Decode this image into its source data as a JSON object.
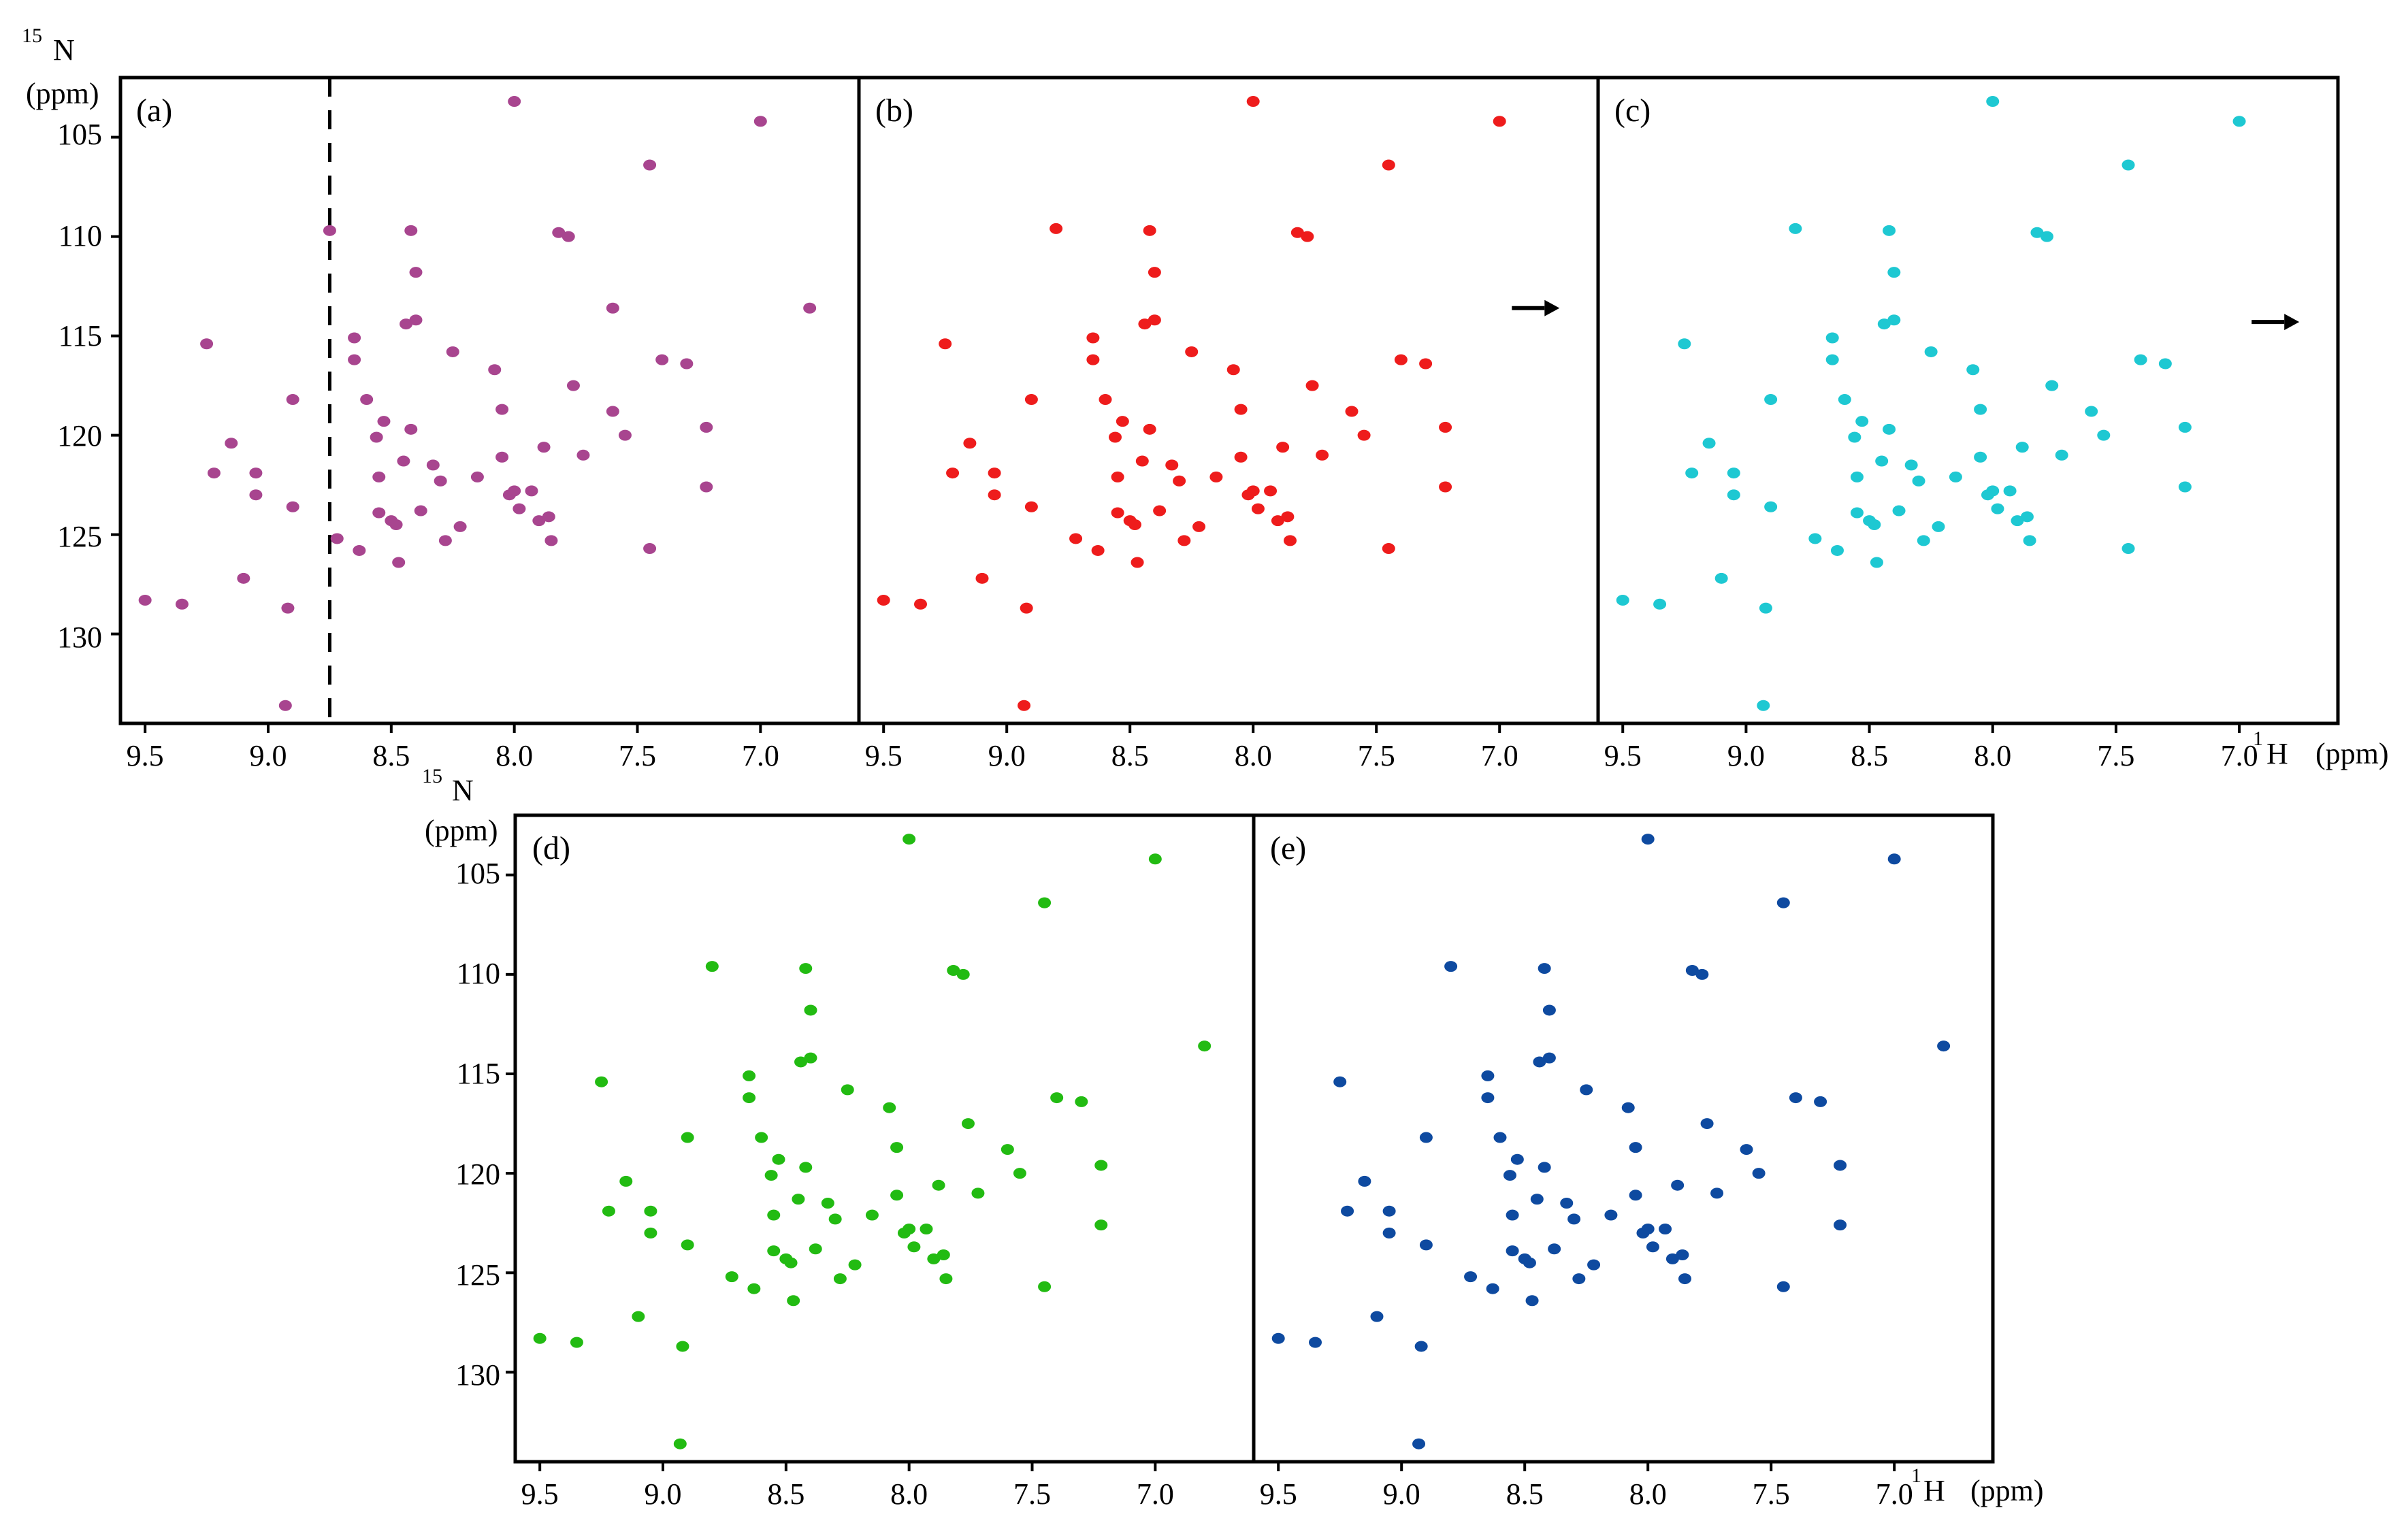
{
  "figure": {
    "rows": [
      {
        "n_title": {
          "sup": "15",
          "main": "N",
          "unit": "(ppm)"
        },
        "h_title": {
          "sup": "1",
          "main": "H",
          "unit": "(ppm)"
        },
        "y_ticks": [
          "105",
          "110",
          "115",
          "120",
          "125",
          "130"
        ],
        "x_ticks": [
          "9.5",
          "9.0",
          "8.5",
          "8.0",
          "7.5",
          "7.0"
        ]
      },
      {
        "n_title": {
          "sup": "15",
          "main": "N",
          "unit": "(ppm)"
        },
        "h_title": {
          "sup": "1",
          "main": "H",
          "unit": "(ppm)"
        },
        "y_ticks": [
          "105",
          "110",
          "115",
          "120",
          "125",
          "130"
        ],
        "x_ticks": [
          "9.5",
          "9.0",
          "8.5",
          "8.0",
          "7.5",
          "7.0"
        ]
      }
    ]
  },
  "chart_data": [
    {
      "panel": "(a)",
      "type": "scatter",
      "color": "#a8458f",
      "xlim": [
        9.6,
        6.6
      ],
      "ylim": [
        102,
        134.5
      ],
      "x_reversed": true,
      "y_reversed": true,
      "reference_line": {
        "x": 8.75,
        "style": "dashed"
      },
      "points": [
        [
          9.5,
          128.3
        ],
        [
          9.35,
          128.5
        ],
        [
          9.25,
          115.4
        ],
        [
          9.22,
          121.9
        ],
        [
          9.15,
          120.4
        ],
        [
          9.1,
          127.2
        ],
        [
          9.05,
          121.9
        ],
        [
          9.05,
          123
        ],
        [
          8.93,
          133.6
        ],
        [
          8.92,
          128.7
        ],
        [
          8.9,
          118.2
        ],
        [
          8.9,
          123.6
        ],
        [
          8.75,
          109.7
        ],
        [
          8.72,
          125.2
        ],
        [
          8.65,
          115.1
        ],
        [
          8.65,
          116.2
        ],
        [
          8.63,
          125.8
        ],
        [
          8.6,
          118.2
        ],
        [
          8.56,
          120.1
        ],
        [
          8.55,
          122.1
        ],
        [
          8.55,
          123.9
        ],
        [
          8.53,
          119.3
        ],
        [
          8.5,
          124.3
        ],
        [
          8.48,
          124.5
        ],
        [
          8.47,
          126.4
        ],
        [
          8.45,
          121.3
        ],
        [
          8.44,
          114.4
        ],
        [
          8.42,
          109.7
        ],
        [
          8.42,
          119.7
        ],
        [
          8.4,
          111.8
        ],
        [
          8.4,
          114.2
        ],
        [
          8.38,
          123.8
        ],
        [
          8.33,
          121.5
        ],
        [
          8.3,
          122.3
        ],
        [
          8.28,
          125.3
        ],
        [
          8.25,
          115.8
        ],
        [
          8.22,
          124.6
        ],
        [
          8.15,
          122.1
        ],
        [
          8.08,
          116.7
        ],
        [
          8.05,
          118.7
        ],
        [
          8.05,
          121.1
        ],
        [
          8.02,
          123
        ],
        [
          8.0,
          122.8
        ],
        [
          7.98,
          123.7
        ],
        [
          7.93,
          122.8
        ],
        [
          7.9,
          124.3
        ],
        [
          7.88,
          120.6
        ],
        [
          7.86,
          124.1
        ],
        [
          7.85,
          125.3
        ],
        [
          7.82,
          109.8
        ],
        [
          7.78,
          110
        ],
        [
          7.76,
          117.5
        ],
        [
          7.72,
          121
        ],
        [
          7.45,
          125.7
        ],
        [
          7.6,
          118.8
        ],
        [
          7.55,
          120
        ],
        [
          7.4,
          116.2
        ],
        [
          7.3,
          116.4
        ],
        [
          7.22,
          119.6
        ],
        [
          7.22,
          122.6
        ],
        [
          8.0,
          103.2
        ],
        [
          7.0,
          104.2
        ],
        [
          7.45,
          106.4
        ],
        [
          7.6,
          113.6
        ],
        [
          6.8,
          113.6
        ]
      ]
    },
    {
      "panel": "(b)",
      "type": "scatter",
      "color": "#ee1c1c",
      "xlim": [
        9.6,
        6.6
      ],
      "ylim": [
        102,
        134.5
      ],
      "x_reversed": true,
      "y_reversed": true,
      "annotation": {
        "type": "arrow",
        "x": 6.95,
        "y": 113.6,
        "direction": "right"
      },
      "points": [
        [
          9.5,
          128.3
        ],
        [
          9.35,
          128.5
        ],
        [
          9.25,
          115.4
        ],
        [
          9.22,
          121.9
        ],
        [
          9.15,
          120.4
        ],
        [
          9.1,
          127.2
        ],
        [
          9.05,
          121.9
        ],
        [
          9.05,
          123
        ],
        [
          8.93,
          133.6
        ],
        [
          8.92,
          128.7
        ],
        [
          8.9,
          118.2
        ],
        [
          8.9,
          123.6
        ],
        [
          8.72,
          125.2
        ],
        [
          8.65,
          115.1
        ],
        [
          8.65,
          116.2
        ],
        [
          8.63,
          125.8
        ],
        [
          8.6,
          118.2
        ],
        [
          8.56,
          120.1
        ],
        [
          8.55,
          122.1
        ],
        [
          8.55,
          123.9
        ],
        [
          8.53,
          119.3
        ],
        [
          8.5,
          124.3
        ],
        [
          8.48,
          124.5
        ],
        [
          8.47,
          126.4
        ],
        [
          8.45,
          121.3
        ],
        [
          8.44,
          114.4
        ],
        [
          8.42,
          109.7
        ],
        [
          8.42,
          119.7
        ],
        [
          8.4,
          111.8
        ],
        [
          8.4,
          114.2
        ],
        [
          8.38,
          123.8
        ],
        [
          8.33,
          121.5
        ],
        [
          8.3,
          122.3
        ],
        [
          8.28,
          125.3
        ],
        [
          8.25,
          115.8
        ],
        [
          8.22,
          124.6
        ],
        [
          8.15,
          122.1
        ],
        [
          8.08,
          116.7
        ],
        [
          8.05,
          118.7
        ],
        [
          8.05,
          121.1
        ],
        [
          8.02,
          123
        ],
        [
          8.0,
          122.8
        ],
        [
          7.98,
          123.7
        ],
        [
          7.93,
          122.8
        ],
        [
          7.9,
          124.3
        ],
        [
          7.88,
          120.6
        ],
        [
          7.86,
          124.1
        ],
        [
          7.85,
          125.3
        ],
        [
          7.82,
          109.8
        ],
        [
          7.78,
          110
        ],
        [
          7.76,
          117.5
        ],
        [
          7.72,
          121
        ],
        [
          7.45,
          125.7
        ],
        [
          7.6,
          118.8
        ],
        [
          7.55,
          120
        ],
        [
          7.4,
          116.2
        ],
        [
          7.3,
          116.4
        ],
        [
          7.22,
          119.6
        ],
        [
          7.22,
          122.6
        ],
        [
          8.0,
          103.2
        ],
        [
          7.0,
          104.2
        ],
        [
          7.45,
          106.4
        ],
        [
          8.8,
          109.6
        ]
      ]
    },
    {
      "panel": "(c)",
      "type": "scatter",
      "color": "#1ec8d2",
      "xlim": [
        9.6,
        6.6
      ],
      "ylim": [
        102,
        134.5
      ],
      "x_reversed": true,
      "y_reversed": true,
      "annotation": {
        "type": "arrow",
        "x": 6.95,
        "y": 114.3,
        "direction": "right"
      },
      "points": [
        [
          9.5,
          128.3
        ],
        [
          9.35,
          128.5
        ],
        [
          9.25,
          115.4
        ],
        [
          9.22,
          121.9
        ],
        [
          9.15,
          120.4
        ],
        [
          9.1,
          127.2
        ],
        [
          9.05,
          121.9
        ],
        [
          9.05,
          123
        ],
        [
          8.93,
          133.6
        ],
        [
          8.92,
          128.7
        ],
        [
          8.9,
          118.2
        ],
        [
          8.9,
          123.6
        ],
        [
          8.72,
          125.2
        ],
        [
          8.65,
          115.1
        ],
        [
          8.65,
          116.2
        ],
        [
          8.63,
          125.8
        ],
        [
          8.6,
          118.2
        ],
        [
          8.56,
          120.1
        ],
        [
          8.55,
          122.1
        ],
        [
          8.55,
          123.9
        ],
        [
          8.53,
          119.3
        ],
        [
          8.5,
          124.3
        ],
        [
          8.48,
          124.5
        ],
        [
          8.47,
          126.4
        ],
        [
          8.45,
          121.3
        ],
        [
          8.44,
          114.4
        ],
        [
          8.42,
          109.7
        ],
        [
          8.42,
          119.7
        ],
        [
          8.4,
          111.8
        ],
        [
          8.4,
          114.2
        ],
        [
          8.38,
          123.8
        ],
        [
          8.33,
          121.5
        ],
        [
          8.3,
          122.3
        ],
        [
          8.28,
          125.3
        ],
        [
          8.25,
          115.8
        ],
        [
          8.22,
          124.6
        ],
        [
          8.15,
          122.1
        ],
        [
          8.08,
          116.7
        ],
        [
          8.05,
          118.7
        ],
        [
          8.05,
          121.1
        ],
        [
          8.02,
          123
        ],
        [
          8.0,
          122.8
        ],
        [
          7.98,
          123.7
        ],
        [
          7.93,
          122.8
        ],
        [
          7.9,
          124.3
        ],
        [
          7.88,
          120.6
        ],
        [
          7.86,
          124.1
        ],
        [
          7.85,
          125.3
        ],
        [
          7.82,
          109.8
        ],
        [
          7.78,
          110
        ],
        [
          7.76,
          117.5
        ],
        [
          7.72,
          121
        ],
        [
          7.45,
          125.7
        ],
        [
          7.6,
          118.8
        ],
        [
          7.55,
          120
        ],
        [
          7.4,
          116.2
        ],
        [
          7.3,
          116.4
        ],
        [
          7.22,
          119.6
        ],
        [
          7.22,
          122.6
        ],
        [
          8.0,
          103.2
        ],
        [
          7.0,
          104.2
        ],
        [
          7.45,
          106.4
        ],
        [
          8.8,
          109.6
        ]
      ]
    },
    {
      "panel": "(d)",
      "type": "scatter",
      "color": "#22bb12",
      "xlim": [
        9.6,
        6.6
      ],
      "ylim": [
        102,
        134.5
      ],
      "x_reversed": true,
      "y_reversed": true,
      "points": [
        [
          9.5,
          128.3
        ],
        [
          9.35,
          128.5
        ],
        [
          9.25,
          115.4
        ],
        [
          9.22,
          121.9
        ],
        [
          9.15,
          120.4
        ],
        [
          9.1,
          127.2
        ],
        [
          9.05,
          121.9
        ],
        [
          9.05,
          123
        ],
        [
          8.93,
          133.6
        ],
        [
          8.92,
          128.7
        ],
        [
          8.9,
          118.2
        ],
        [
          8.9,
          123.6
        ],
        [
          8.72,
          125.2
        ],
        [
          8.65,
          115.1
        ],
        [
          8.65,
          116.2
        ],
        [
          8.63,
          125.8
        ],
        [
          8.6,
          118.2
        ],
        [
          8.56,
          120.1
        ],
        [
          8.55,
          122.1
        ],
        [
          8.55,
          123.9
        ],
        [
          8.53,
          119.3
        ],
        [
          8.5,
          124.3
        ],
        [
          8.48,
          124.5
        ],
        [
          8.47,
          126.4
        ],
        [
          8.45,
          121.3
        ],
        [
          8.44,
          114.4
        ],
        [
          8.42,
          109.7
        ],
        [
          8.42,
          119.7
        ],
        [
          8.4,
          111.8
        ],
        [
          8.4,
          114.2
        ],
        [
          8.38,
          123.8
        ],
        [
          8.33,
          121.5
        ],
        [
          8.3,
          122.3
        ],
        [
          8.28,
          125.3
        ],
        [
          8.25,
          115.8
        ],
        [
          8.22,
          124.6
        ],
        [
          8.15,
          122.1
        ],
        [
          8.08,
          116.7
        ],
        [
          8.05,
          118.7
        ],
        [
          8.05,
          121.1
        ],
        [
          8.02,
          123
        ],
        [
          8.0,
          122.8
        ],
        [
          7.98,
          123.7
        ],
        [
          7.93,
          122.8
        ],
        [
          7.9,
          124.3
        ],
        [
          7.88,
          120.6
        ],
        [
          7.86,
          124.1
        ],
        [
          7.85,
          125.3
        ],
        [
          7.82,
          109.8
        ],
        [
          7.78,
          110
        ],
        [
          7.76,
          117.5
        ],
        [
          7.72,
          121
        ],
        [
          7.45,
          125.7
        ],
        [
          7.6,
          118.8
        ],
        [
          7.55,
          120
        ],
        [
          7.4,
          116.2
        ],
        [
          7.3,
          116.4
        ],
        [
          7.22,
          119.6
        ],
        [
          7.22,
          122.6
        ],
        [
          8.0,
          103.2
        ],
        [
          7.0,
          104.2
        ],
        [
          7.45,
          106.4
        ],
        [
          8.8,
          109.6
        ],
        [
          6.8,
          113.6
        ]
      ]
    },
    {
      "panel": "(e)",
      "type": "scatter",
      "color": "#0e4aa0",
      "xlim": [
        9.6,
        6.6
      ],
      "ylim": [
        102,
        134.5
      ],
      "x_reversed": true,
      "y_reversed": true,
      "points": [
        [
          9.5,
          128.3
        ],
        [
          9.35,
          128.5
        ],
        [
          9.25,
          115.4
        ],
        [
          9.22,
          121.9
        ],
        [
          9.15,
          120.4
        ],
        [
          9.1,
          127.2
        ],
        [
          9.05,
          121.9
        ],
        [
          9.05,
          123
        ],
        [
          8.93,
          133.6
        ],
        [
          8.92,
          128.7
        ],
        [
          8.9,
          118.2
        ],
        [
          8.9,
          123.6
        ],
        [
          8.72,
          125.2
        ],
        [
          8.65,
          115.1
        ],
        [
          8.65,
          116.2
        ],
        [
          8.63,
          125.8
        ],
        [
          8.6,
          118.2
        ],
        [
          8.56,
          120.1
        ],
        [
          8.55,
          122.1
        ],
        [
          8.55,
          123.9
        ],
        [
          8.53,
          119.3
        ],
        [
          8.5,
          124.3
        ],
        [
          8.48,
          124.5
        ],
        [
          8.47,
          126.4
        ],
        [
          8.45,
          121.3
        ],
        [
          8.44,
          114.4
        ],
        [
          8.42,
          109.7
        ],
        [
          8.42,
          119.7
        ],
        [
          8.4,
          111.8
        ],
        [
          8.4,
          114.2
        ],
        [
          8.38,
          123.8
        ],
        [
          8.33,
          121.5
        ],
        [
          8.3,
          122.3
        ],
        [
          8.28,
          125.3
        ],
        [
          8.25,
          115.8
        ],
        [
          8.22,
          124.6
        ],
        [
          8.15,
          122.1
        ],
        [
          8.08,
          116.7
        ],
        [
          8.05,
          118.7
        ],
        [
          8.05,
          121.1
        ],
        [
          8.02,
          123
        ],
        [
          8.0,
          122.8
        ],
        [
          7.98,
          123.7
        ],
        [
          7.93,
          122.8
        ],
        [
          7.9,
          124.3
        ],
        [
          7.88,
          120.6
        ],
        [
          7.86,
          124.1
        ],
        [
          7.85,
          125.3
        ],
        [
          7.82,
          109.8
        ],
        [
          7.78,
          110
        ],
        [
          7.76,
          117.5
        ],
        [
          7.72,
          121
        ],
        [
          7.45,
          125.7
        ],
        [
          7.6,
          118.8
        ],
        [
          7.55,
          120
        ],
        [
          7.4,
          116.2
        ],
        [
          7.3,
          116.4
        ],
        [
          7.22,
          119.6
        ],
        [
          7.22,
          122.6
        ],
        [
          8.0,
          103.2
        ],
        [
          7.0,
          104.2
        ],
        [
          7.45,
          106.4
        ],
        [
          8.8,
          109.6
        ],
        [
          6.8,
          113.6
        ]
      ]
    }
  ]
}
